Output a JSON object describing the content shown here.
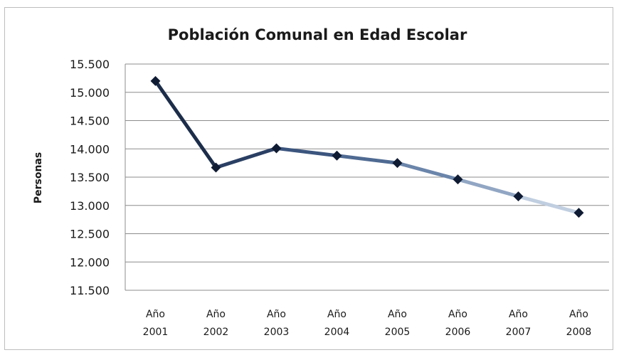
{
  "chart_data": {
    "type": "line",
    "title": "Población Comunal en Edad Escolar",
    "xlabel": "",
    "ylabel": "Personas",
    "categories": [
      [
        "Año",
        "2001"
      ],
      [
        "Año",
        "2002"
      ],
      [
        "Año",
        "2003"
      ],
      [
        "Año",
        "2004"
      ],
      [
        "Año",
        "2005"
      ],
      [
        "Año",
        "2006"
      ],
      [
        "Año",
        "2007"
      ],
      [
        "Año",
        "2008"
      ]
    ],
    "yticks": [
      "11.500",
      "12.000",
      "12.500",
      "13.000",
      "13.500",
      "14.000",
      "14.500",
      "15.000",
      "15.500"
    ],
    "ylim": [
      11500,
      15500
    ],
    "grid": true,
    "series": [
      {
        "values": [
          15200,
          13670,
          14010,
          13880,
          13750,
          13460,
          13160,
          12870
        ]
      }
    ],
    "line_colors": [
      "#1c2d4a",
      "#2a3f63",
      "#3b557e",
      "#4f6a92",
      "#6b85aa",
      "#91a6c3",
      "#c0cee0"
    ],
    "marker_color": "#0f1b33"
  }
}
